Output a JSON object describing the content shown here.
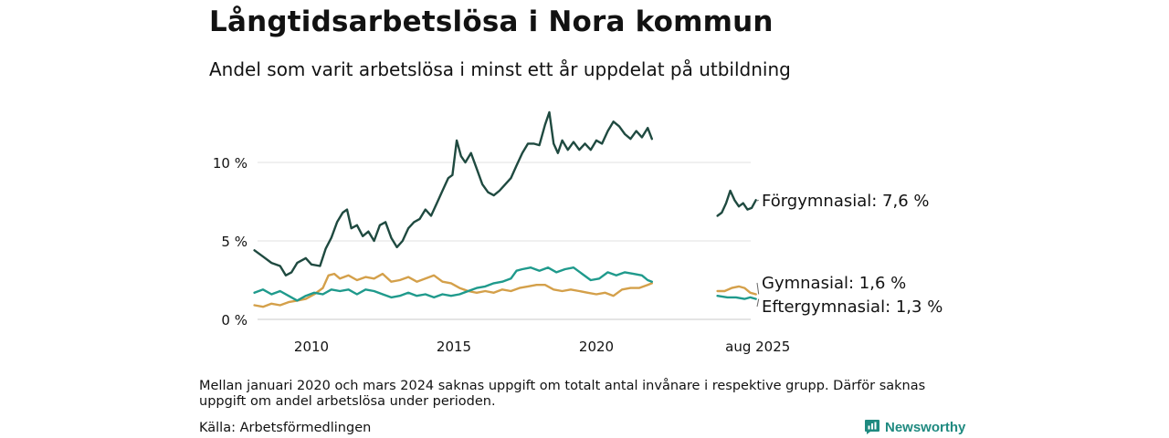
{
  "header": {
    "title": "Långtidsarbetslösa i Nora kommun",
    "subtitle": "Andel som varit arbetslösa i minst ett år uppdelat på utbildning"
  },
  "footer": {
    "note": "Mellan januari 2020 och mars 2024 saknas uppgift om totalt antal invånare i respektive grupp. Därför saknas uppgift om andel arbetslösa under perioden.",
    "source": "Källa: Arbetsförmedlingen",
    "brand": "Newsworthy"
  },
  "chart_data": {
    "type": "line",
    "title": "Långtidsarbetslösa i Nora kommun",
    "subtitle": "Andel som varit arbetslösa i minst ett år uppdelat på utbildning",
    "x_axis": {
      "ticks": [
        2010,
        2015,
        2020
      ],
      "tick_labels": [
        "2010",
        "2015",
        "2020"
      ],
      "end_label": "aug 2025",
      "range": [
        "2008-01",
        "2025-08"
      ]
    },
    "y_axis": {
      "ticks": [
        0,
        5,
        10
      ],
      "tick_labels": [
        "0 %",
        "5 %",
        "10 %"
      ],
      "range": [
        0,
        13.5
      ],
      "gridlines": true
    },
    "legend": "direct labels at line ends (right)",
    "series": [
      {
        "name": "Förgymnasial",
        "end_label": "Förgymnasial: 7,6 %",
        "color": "#1f4a40",
        "segments": [
          [
            [
              2008.0,
              4.4
            ],
            [
              2008.3,
              4.0
            ],
            [
              2008.6,
              3.6
            ],
            [
              2008.9,
              3.4
            ],
            [
              2009.1,
              2.8
            ],
            [
              2009.3,
              3.0
            ],
            [
              2009.5,
              3.6
            ],
            [
              2009.8,
              3.9
            ],
            [
              2010.0,
              3.5
            ],
            [
              2010.3,
              3.4
            ],
            [
              2010.5,
              4.5
            ],
            [
              2010.7,
              5.2
            ],
            [
              2010.9,
              6.2
            ],
            [
              2011.1,
              6.8
            ],
            [
              2011.25,
              7.0
            ],
            [
              2011.4,
              5.8
            ],
            [
              2011.6,
              6.0
            ],
            [
              2011.8,
              5.3
            ],
            [
              2012.0,
              5.6
            ],
            [
              2012.2,
              5.0
            ],
            [
              2012.4,
              6.0
            ],
            [
              2012.6,
              6.2
            ],
            [
              2012.8,
              5.2
            ],
            [
              2013.0,
              4.6
            ],
            [
              2013.2,
              5.0
            ],
            [
              2013.4,
              5.8
            ],
            [
              2013.6,
              6.2
            ],
            [
              2013.8,
              6.4
            ],
            [
              2014.0,
              7.0
            ],
            [
              2014.2,
              6.6
            ],
            [
              2014.4,
              7.4
            ],
            [
              2014.6,
              8.2
            ],
            [
              2014.8,
              9.0
            ],
            [
              2014.95,
              9.2
            ],
            [
              2015.1,
              11.4
            ],
            [
              2015.25,
              10.4
            ],
            [
              2015.4,
              10.0
            ],
            [
              2015.6,
              10.6
            ],
            [
              2015.8,
              9.6
            ],
            [
              2016.0,
              8.6
            ],
            [
              2016.2,
              8.1
            ],
            [
              2016.4,
              7.9
            ],
            [
              2016.6,
              8.2
            ],
            [
              2016.8,
              8.6
            ],
            [
              2017.0,
              9.0
            ],
            [
              2017.2,
              9.8
            ],
            [
              2017.4,
              10.6
            ],
            [
              2017.6,
              11.2
            ],
            [
              2017.8,
              11.2
            ],
            [
              2018.0,
              11.1
            ],
            [
              2018.2,
              12.4
            ],
            [
              2018.35,
              13.2
            ],
            [
              2018.5,
              11.2
            ],
            [
              2018.65,
              10.6
            ],
            [
              2018.8,
              11.4
            ],
            [
              2019.0,
              10.8
            ],
            [
              2019.2,
              11.3
            ],
            [
              2019.4,
              10.8
            ],
            [
              2019.6,
              11.2
            ],
            [
              2019.8,
              10.8
            ],
            [
              2020.0,
              11.4
            ],
            [
              2020.2,
              11.2
            ],
            [
              2020.4,
              12.0
            ],
            [
              2020.6,
              12.6
            ],
            [
              2020.8,
              12.3
            ],
            [
              2021.0,
              11.8
            ],
            [
              2021.2,
              11.5
            ],
            [
              2021.4,
              12.0
            ],
            [
              2021.6,
              11.6
            ],
            [
              2021.8,
              12.2
            ],
            [
              2021.95,
              11.5
            ]
          ],
          [
            [
              2024.25,
              6.6
            ],
            [
              2024.4,
              6.8
            ],
            [
              2024.55,
              7.4
            ],
            [
              2024.7,
              8.2
            ],
            [
              2024.85,
              7.6
            ],
            [
              2025.0,
              7.2
            ],
            [
              2025.15,
              7.4
            ],
            [
              2025.3,
              7.0
            ],
            [
              2025.45,
              7.1
            ],
            [
              2025.6,
              7.6
            ]
          ]
        ]
      },
      {
        "name": "Gymnasial",
        "end_label": "Gymnasial: 1,6 %",
        "color": "#d4a04a",
        "segments": [
          [
            [
              2008.0,
              0.9
            ],
            [
              2008.3,
              0.8
            ],
            [
              2008.6,
              1.0
            ],
            [
              2008.9,
              0.9
            ],
            [
              2009.2,
              1.1
            ],
            [
              2009.5,
              1.2
            ],
            [
              2009.8,
              1.3
            ],
            [
              2010.1,
              1.6
            ],
            [
              2010.4,
              2.0
            ],
            [
              2010.6,
              2.8
            ],
            [
              2010.8,
              2.9
            ],
            [
              2011.0,
              2.6
            ],
            [
              2011.3,
              2.8
            ],
            [
              2011.6,
              2.5
            ],
            [
              2011.9,
              2.7
            ],
            [
              2012.2,
              2.6
            ],
            [
              2012.5,
              2.9
            ],
            [
              2012.8,
              2.4
            ],
            [
              2013.1,
              2.5
            ],
            [
              2013.4,
              2.7
            ],
            [
              2013.7,
              2.4
            ],
            [
              2014.0,
              2.6
            ],
            [
              2014.3,
              2.8
            ],
            [
              2014.6,
              2.4
            ],
            [
              2014.9,
              2.3
            ],
            [
              2015.2,
              2.0
            ],
            [
              2015.5,
              1.8
            ],
            [
              2015.8,
              1.7
            ],
            [
              2016.1,
              1.8
            ],
            [
              2016.4,
              1.7
            ],
            [
              2016.7,
              1.9
            ],
            [
              2017.0,
              1.8
            ],
            [
              2017.3,
              2.0
            ],
            [
              2017.6,
              2.1
            ],
            [
              2017.9,
              2.2
            ],
            [
              2018.2,
              2.2
            ],
            [
              2018.5,
              1.9
            ],
            [
              2018.8,
              1.8
            ],
            [
              2019.1,
              1.9
            ],
            [
              2019.4,
              1.8
            ],
            [
              2019.7,
              1.7
            ],
            [
              2020.0,
              1.6
            ],
            [
              2020.3,
              1.7
            ],
            [
              2020.6,
              1.5
            ],
            [
              2020.9,
              1.9
            ],
            [
              2021.2,
              2.0
            ],
            [
              2021.5,
              2.0
            ],
            [
              2021.8,
              2.2
            ],
            [
              2021.95,
              2.3
            ]
          ],
          [
            [
              2024.25,
              1.8
            ],
            [
              2024.5,
              1.8
            ],
            [
              2024.75,
              2.0
            ],
            [
              2025.0,
              2.1
            ],
            [
              2025.2,
              2.0
            ],
            [
              2025.4,
              1.7
            ],
            [
              2025.6,
              1.6
            ]
          ]
        ]
      },
      {
        "name": "Eftergymnasial",
        "end_label": "Eftergymnasial: 1,3 %",
        "color": "#1f9a8c",
        "segments": [
          [
            [
              2008.0,
              1.7
            ],
            [
              2008.3,
              1.9
            ],
            [
              2008.6,
              1.6
            ],
            [
              2008.9,
              1.8
            ],
            [
              2009.2,
              1.5
            ],
            [
              2009.5,
              1.2
            ],
            [
              2009.8,
              1.5
            ],
            [
              2010.1,
              1.7
            ],
            [
              2010.4,
              1.6
            ],
            [
              2010.7,
              1.9
            ],
            [
              2011.0,
              1.8
            ],
            [
              2011.3,
              1.9
            ],
            [
              2011.6,
              1.6
            ],
            [
              2011.9,
              1.9
            ],
            [
              2012.2,
              1.8
            ],
            [
              2012.5,
              1.6
            ],
            [
              2012.8,
              1.4
            ],
            [
              2013.1,
              1.5
            ],
            [
              2013.4,
              1.7
            ],
            [
              2013.7,
              1.5
            ],
            [
              2014.0,
              1.6
            ],
            [
              2014.3,
              1.4
            ],
            [
              2014.6,
              1.6
            ],
            [
              2014.9,
              1.5
            ],
            [
              2015.2,
              1.6
            ],
            [
              2015.5,
              1.8
            ],
            [
              2015.8,
              2.0
            ],
            [
              2016.1,
              2.1
            ],
            [
              2016.4,
              2.3
            ],
            [
              2016.7,
              2.4
            ],
            [
              2017.0,
              2.6
            ],
            [
              2017.2,
              3.1
            ],
            [
              2017.4,
              3.2
            ],
            [
              2017.7,
              3.3
            ],
            [
              2018.0,
              3.1
            ],
            [
              2018.3,
              3.3
            ],
            [
              2018.6,
              3.0
            ],
            [
              2018.9,
              3.2
            ],
            [
              2019.2,
              3.3
            ],
            [
              2019.5,
              2.9
            ],
            [
              2019.8,
              2.5
            ],
            [
              2020.1,
              2.6
            ],
            [
              2020.4,
              3.0
            ],
            [
              2020.7,
              2.8
            ],
            [
              2021.0,
              3.0
            ],
            [
              2021.3,
              2.9
            ],
            [
              2021.6,
              2.8
            ],
            [
              2021.8,
              2.5
            ],
            [
              2021.95,
              2.4
            ]
          ],
          [
            [
              2024.25,
              1.5
            ],
            [
              2024.6,
              1.4
            ],
            [
              2024.9,
              1.4
            ],
            [
              2025.2,
              1.3
            ],
            [
              2025.4,
              1.4
            ],
            [
              2025.6,
              1.3
            ]
          ]
        ]
      }
    ]
  }
}
